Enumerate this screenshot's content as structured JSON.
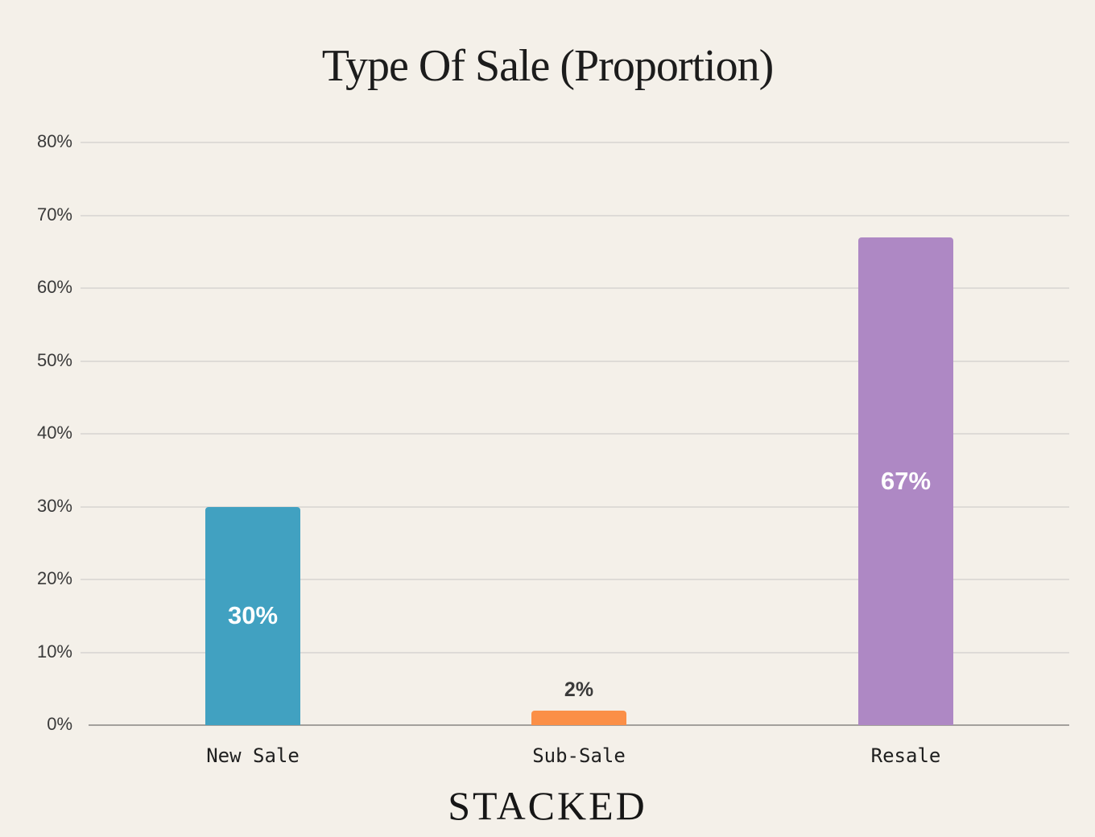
{
  "chart_data": {
    "type": "bar",
    "title": "Type Of Sale (Proportion)",
    "xlabel": "",
    "ylabel": "",
    "categories": [
      "New Sale",
      "Sub-Sale",
      "Resale"
    ],
    "values": [
      30,
      2,
      67
    ],
    "value_labels": [
      "30%",
      "2%",
      "67%"
    ],
    "colors": [
      "#41a1c1",
      "#fb8f47",
      "#ae88c4"
    ],
    "ylim": [
      0,
      80
    ],
    "yticks": [
      "0%",
      "10%",
      "20%",
      "30%",
      "40%",
      "50%",
      "60%",
      "70%",
      "80%"
    ],
    "grid": true,
    "legend": "none"
  },
  "title": "Type Of Sale (Proportion)",
  "brand": "STACKED"
}
